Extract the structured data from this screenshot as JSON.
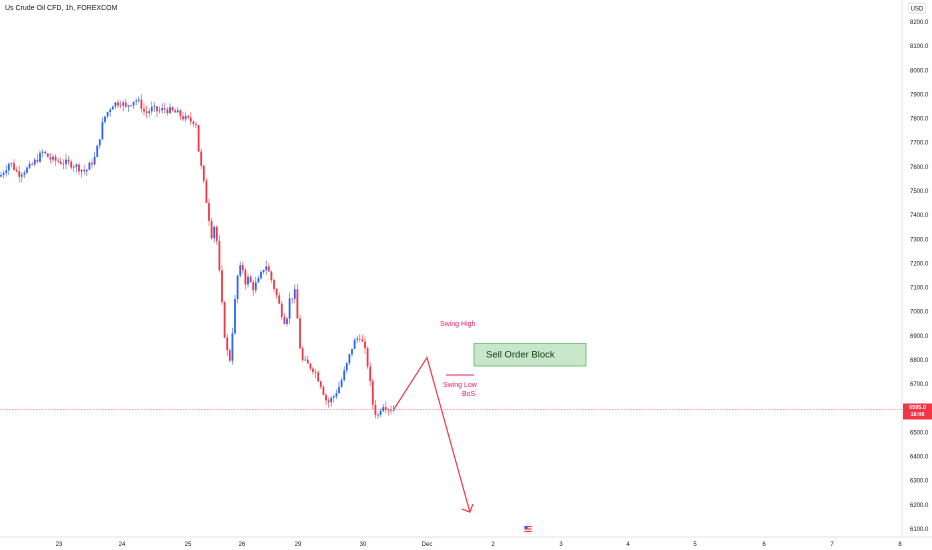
{
  "header": {
    "symbol_title": "Us Crude Oil CFD, 1h, FOREXCOM"
  },
  "currency_label": "USD",
  "price_tag": {
    "price": "6595.0",
    "countdown": "18:06"
  },
  "colors": {
    "up": "#2962ff",
    "down": "#f23645",
    "block_fill": "#c8e6c9",
    "block_border": "#4caf50",
    "annotation": "#e91e63",
    "projection": "#f23645"
  },
  "icons": {
    "flag": "us-flag-icon"
  },
  "chart_data": {
    "type": "candlestick",
    "title": "Us Crude Oil CFD, 1h, FOREXCOM",
    "y_ticks": [
      "8200.0",
      "8100.0",
      "8000.0",
      "7900.0",
      "7800.0",
      "7700.0",
      "7600.0",
      "7500.0",
      "7400.0",
      "7300.0",
      "7200.0",
      "7100.0",
      "7000.0",
      "6900.0",
      "6800.0",
      "6700.0",
      "6600.0",
      "6500.0",
      "6400.0",
      "6300.0",
      "6200.0",
      "6100.0"
    ],
    "ylim": [
      6050,
      8250
    ],
    "x_ticks": [
      "23",
      "24",
      "25",
      "26",
      "29",
      "30",
      "Dec",
      "2",
      "3",
      "4",
      "5",
      "6",
      "7",
      "8"
    ],
    "last_price": 6595.0,
    "price_path": [
      {
        "x": 0.0,
        "y": 7560
      },
      {
        "x": 0.08,
        "y": 7620
      },
      {
        "x": 0.15,
        "y": 7570
      },
      {
        "x": 0.25,
        "y": 7600
      },
      {
        "x": 0.35,
        "y": 7660
      },
      {
        "x": 0.42,
        "y": 7630
      },
      {
        "x": 0.5,
        "y": 7620
      },
      {
        "x": 0.6,
        "y": 7610
      },
      {
        "x": 0.7,
        "y": 7580
      },
      {
        "x": 0.78,
        "y": 7640
      },
      {
        "x": 0.85,
        "y": 7800
      },
      {
        "x": 0.92,
        "y": 7860
      },
      {
        "x": 1.0,
        "y": 7870
      },
      {
        "x": 1.05,
        "y": 7840
      },
      {
        "x": 1.1,
        "y": 7860
      },
      {
        "x": 1.2,
        "y": 7880
      },
      {
        "x": 1.28,
        "y": 7860
      },
      {
        "x": 1.35,
        "y": 7820
      },
      {
        "x": 1.45,
        "y": 7840
      },
      {
        "x": 1.55,
        "y": 7830
      },
      {
        "x": 1.65,
        "y": 7840
      },
      {
        "x": 1.75,
        "y": 7830
      },
      {
        "x": 1.85,
        "y": 7820
      },
      {
        "x": 1.95,
        "y": 7800
      },
      {
        "x": 2.05,
        "y": 7790
      },
      {
        "x": 2.1,
        "y": 7790
      },
      {
        "x": 2.15,
        "y": 7780
      },
      {
        "x": 2.2,
        "y": 7660
      },
      {
        "x": 2.3,
        "y": 7520
      },
      {
        "x": 2.38,
        "y": 7400
      },
      {
        "x": 2.45,
        "y": 7300
      },
      {
        "x": 2.5,
        "y": 7380
      },
      {
        "x": 2.55,
        "y": 7250
      },
      {
        "x": 2.62,
        "y": 7050
      },
      {
        "x": 2.7,
        "y": 6850
      },
      {
        "x": 2.78,
        "y": 6800
      },
      {
        "x": 2.85,
        "y": 7000
      },
      {
        "x": 2.92,
        "y": 7150
      },
      {
        "x": 3.0,
        "y": 7200
      },
      {
        "x": 3.05,
        "y": 7120
      },
      {
        "x": 3.1,
        "y": 7140
      },
      {
        "x": 3.2,
        "y": 7100
      },
      {
        "x": 3.3,
        "y": 7130
      },
      {
        "x": 3.42,
        "y": 7200
      },
      {
        "x": 3.5,
        "y": 7150
      },
      {
        "x": 3.6,
        "y": 7080
      },
      {
        "x": 3.7,
        "y": 7000
      },
      {
        "x": 3.78,
        "y": 6950
      },
      {
        "x": 3.85,
        "y": 7050
      },
      {
        "x": 3.95,
        "y": 7080
      },
      {
        "x": 4.05,
        "y": 6800
      },
      {
        "x": 4.15,
        "y": 6780
      },
      {
        "x": 4.25,
        "y": 6760
      },
      {
        "x": 4.35,
        "y": 6700
      },
      {
        "x": 4.45,
        "y": 6620
      },
      {
        "x": 4.55,
        "y": 6650
      },
      {
        "x": 4.65,
        "y": 6700
      },
      {
        "x": 4.75,
        "y": 6780
      },
      {
        "x": 4.85,
        "y": 6870
      },
      {
        "x": 4.95,
        "y": 6900
      },
      {
        "x": 5.02,
        "y": 6850
      },
      {
        "x": 5.08,
        "y": 6770
      },
      {
        "x": 5.15,
        "y": 6620
      },
      {
        "x": 5.22,
        "y": 6560
      },
      {
        "x": 5.3,
        "y": 6620
      },
      {
        "x": 5.4,
        "y": 6600
      },
      {
        "x": 5.48,
        "y": 6595
      }
    ],
    "annotations": [
      {
        "text": "Swing High"
      },
      {
        "text": "Swing Low"
      },
      {
        "text": "BoS"
      },
      {
        "text": "Sell Order Block",
        "low": 6775,
        "high": 6868
      }
    ],
    "projection": [
      {
        "x": 5.48,
        "y": 6595
      },
      {
        "x": 6.0,
        "y": 6810
      },
      {
        "x": 6.65,
        "y": 6170
      }
    ]
  }
}
